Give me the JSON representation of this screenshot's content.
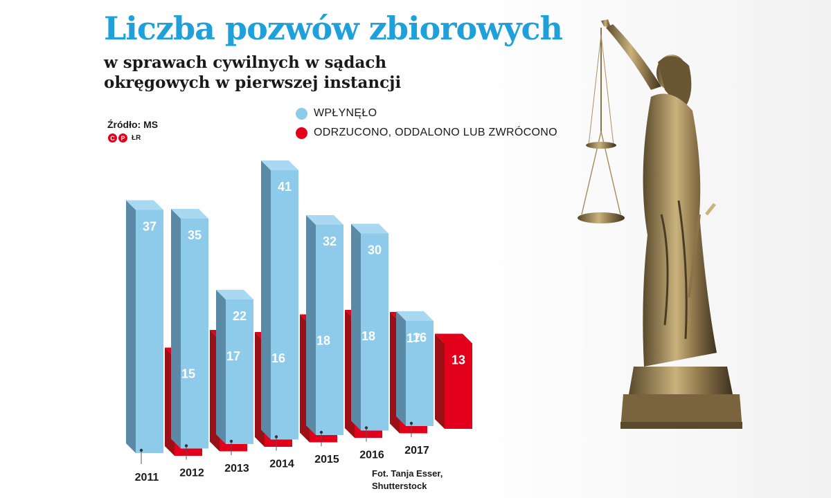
{
  "title": "Liczba pozwów zbiorowych",
  "subtitle_line1": "w sprawach cywilnych w sądach",
  "subtitle_line2": "okręgowych w pierwszej instancji",
  "source": "Źródło: MS",
  "logo": {
    "c": "C",
    "p": "P",
    "text": "ŁR"
  },
  "credit_line1": "Fot. Tanja Esser,",
  "credit_line2": "Shutterstock",
  "colors": {
    "filed": "#8ecbea",
    "filed_side": "#5a8aa6",
    "filed_top": "#a9d9f1",
    "rejected": "#e2001a",
    "rejected_side": "#9b1016"
  },
  "chart_data": {
    "type": "bar",
    "title": "Liczba pozwów zbiorowych",
    "subtitle": "w sprawach cywilnych w sądach okręgowych w pierwszej instancji",
    "categories": [
      "2011",
      "2012",
      "2013",
      "2014",
      "2015",
      "2016",
      "2017"
    ],
    "series": [
      {
        "name": "WPŁYNĘŁO",
        "values": [
          37,
          35,
          22,
          41,
          32,
          30,
          16
        ]
      },
      {
        "name": "ODRZUCONO, ODDALONO LUB ZWRÓCONO",
        "values": [
          15,
          17,
          16,
          18,
          18,
          17,
          13
        ]
      }
    ],
    "legend_position": "top",
    "grid": false,
    "style": "3d"
  }
}
